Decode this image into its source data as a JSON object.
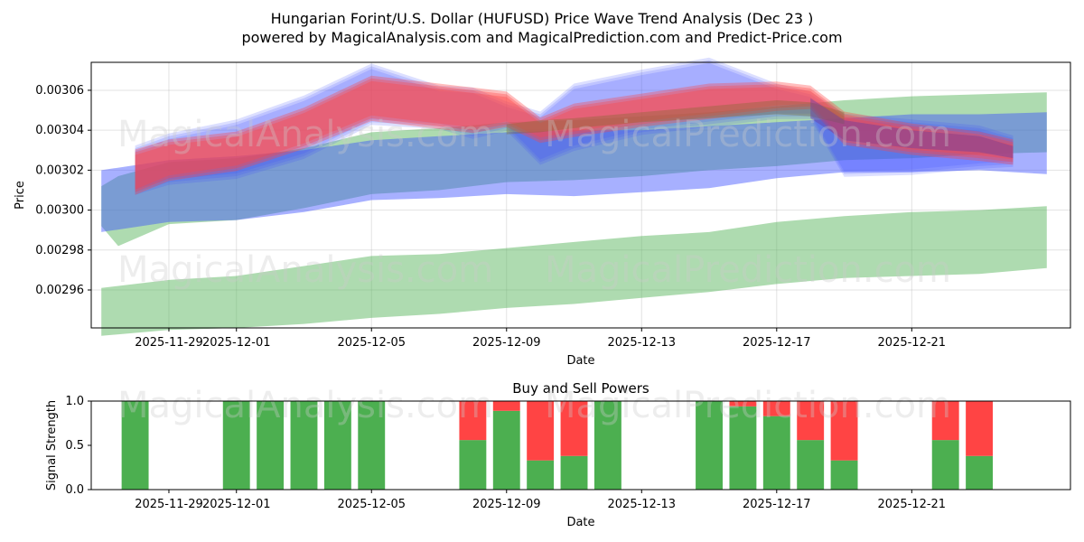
{
  "title_line1": "Hungarian Forint/U.S. Dollar (HUFUSD) Price Wave Trend Analysis (Dec 23 )",
  "title_line2": "powered by MagicalAnalysis.com and MagicalPrediction.com and Predict-Price.com",
  "watermarks": [
    "MagicalAnalysis.com",
    "MagicalPrediction.com"
  ],
  "colors": {
    "green": "#4caf50",
    "red": "#ff4444",
    "blue": "#3b4fff",
    "pink": "#ff6b7a",
    "purple": "#6a3fa0"
  },
  "chart_data": [
    {
      "type": "area",
      "title": "",
      "xlabel": "Date",
      "ylabel": "Price",
      "x_start": "2025-11-26",
      "x_range_days": [
        -0.3,
        28.7
      ],
      "ylim": [
        0.002941,
        0.003074
      ],
      "yticks": [
        0.00296,
        0.00298,
        0.003,
        0.00302,
        0.00304,
        0.00306
      ],
      "ytick_labels": [
        "0.00296",
        "0.00298",
        "0.00300",
        "0.00302",
        "0.00304",
        "0.00306"
      ],
      "xticks": [
        {
          "day": 2,
          "label": "2025-11-29"
        },
        {
          "day": 4,
          "label": "2025-12-01"
        },
        {
          "day": 8,
          "label": "2025-12-05"
        },
        {
          "day": 12,
          "label": "2025-12-09"
        },
        {
          "day": 16,
          "label": "2025-12-13"
        },
        {
          "day": 20,
          "label": "2025-12-17"
        },
        {
          "day": 24,
          "label": "2025-12-21"
        }
      ],
      "series": [
        {
          "name": "green-upper-band",
          "color": "green",
          "x": [
            0,
            0.5,
            2,
            4,
            6,
            8,
            10,
            12,
            14,
            16,
            18,
            20,
            22,
            24,
            26,
            28
          ],
          "upper": [
            0.003012,
            0.003017,
            0.003024,
            0.003026,
            0.003031,
            0.003039,
            0.003041,
            0.003044,
            0.003045,
            0.003047,
            0.003049,
            0.003052,
            0.003055,
            0.003057,
            0.003058,
            0.003059
          ],
          "lower": [
            0.002992,
            0.002982,
            0.002993,
            0.002995,
            0.003001,
            0.003008,
            0.00301,
            0.003014,
            0.003015,
            0.003017,
            0.00302,
            0.003022,
            0.003025,
            0.003026,
            0.003028,
            0.003029
          ]
        },
        {
          "name": "green-lower-band",
          "color": "green",
          "x": [
            0,
            2,
            4,
            6,
            8,
            10,
            12,
            14,
            16,
            18,
            20,
            22,
            24,
            26,
            28
          ],
          "upper": [
            0.002961,
            0.002965,
            0.002967,
            0.002972,
            0.002977,
            0.002978,
            0.002981,
            0.002984,
            0.002987,
            0.002989,
            0.002994,
            0.002997,
            0.002999,
            0.003,
            0.003002
          ],
          "lower": [
            0.002937,
            0.00294,
            0.002941,
            0.002943,
            0.002946,
            0.002948,
            0.002951,
            0.002953,
            0.002956,
            0.002959,
            0.002963,
            0.002966,
            0.002967,
            0.002968,
            0.002971
          ]
        },
        {
          "name": "blue-band",
          "color": "blue",
          "x": [
            0,
            2,
            4,
            6,
            8,
            10,
            12,
            14,
            16,
            18,
            20,
            22,
            24,
            26,
            28
          ],
          "upper": [
            0.00302,
            0.003025,
            0.003027,
            0.00303,
            0.003035,
            0.003037,
            0.003039,
            0.00304,
            0.00304,
            0.003042,
            0.003044,
            0.003046,
            0.003048,
            0.003048,
            0.003049
          ],
          "lower": [
            0.002989,
            0.002994,
            0.002995,
            0.002999,
            0.003005,
            0.003006,
            0.003008,
            0.003007,
            0.003009,
            0.003011,
            0.003016,
            0.003019,
            0.003019,
            0.00302,
            0.003018
          ]
        },
        {
          "name": "blue-wave",
          "color": "blue",
          "x": [
            1,
            2,
            4,
            6,
            8,
            10,
            11,
            12,
            13,
            14,
            16,
            18,
            20,
            21,
            22,
            24,
            26,
            27
          ],
          "upper": [
            0.003031,
            0.003037,
            0.003044,
            0.003056,
            0.003072,
            0.003061,
            0.00306,
            0.003053,
            0.003048,
            0.003062,
            0.003069,
            0.003075,
            0.003062,
            0.003058,
            0.003047,
            0.003044,
            0.003041,
            0.003036
          ],
          "lower": [
            0.003009,
            0.003014,
            0.003017,
            0.003027,
            0.003044,
            0.003042,
            0.003037,
            0.003041,
            0.003024,
            0.003031,
            0.003039,
            0.003043,
            0.003047,
            0.003047,
            0.003018,
            0.003019,
            0.003022,
            0.003023
          ]
        },
        {
          "name": "red-wave",
          "color": "red",
          "x": [
            1,
            2,
            4,
            6,
            8,
            10,
            11,
            12,
            13,
            14,
            16,
            18,
            20,
            21,
            22,
            24,
            26,
            27
          ],
          "upper": [
            0.003029,
            0.003034,
            0.003038,
            0.00305,
            0.003066,
            0.003062,
            0.00306,
            0.003058,
            0.003045,
            0.003052,
            0.003057,
            0.003062,
            0.003063,
            0.003061,
            0.003048,
            0.003042,
            0.003038,
            0.003034
          ],
          "lower": [
            0.003009,
            0.003016,
            0.003021,
            0.003032,
            0.003046,
            0.003042,
            0.00304,
            0.003043,
            0.003035,
            0.003038,
            0.003043,
            0.003047,
            0.003051,
            0.003052,
            0.003034,
            0.003029,
            0.003026,
            0.003024
          ]
        },
        {
          "name": "olive-wave",
          "color": "green",
          "x": [
            12,
            13,
            14,
            16,
            18,
            20,
            21,
            22
          ],
          "upper": [
            0.003043,
            0.003045,
            0.003046,
            0.003049,
            0.003052,
            0.003055,
            0.003054,
            0.003049
          ],
          "lower": [
            0.003038,
            0.003039,
            0.003041,
            0.003044,
            0.003046,
            0.003048,
            0.003047,
            0.003043
          ]
        },
        {
          "name": "purple-wave",
          "color": "purple",
          "x": [
            21,
            22,
            24,
            26,
            27
          ],
          "upper": [
            0.003056,
            0.003045,
            0.00304,
            0.003037,
            0.003032
          ],
          "lower": [
            0.003046,
            0.003035,
            0.003031,
            0.003029,
            0.003026
          ]
        }
      ]
    },
    {
      "type": "bar",
      "title": "Buy and Sell Powers",
      "xlabel": "Date",
      "ylabel": "Signal Strength",
      "ylim": [
        0,
        1
      ],
      "yticks": [
        0.0,
        0.5,
        1.0
      ],
      "ytick_labels": [
        "0.0",
        "0.5",
        "1.0"
      ],
      "xticks": [
        {
          "day": 2,
          "label": "2025-11-29"
        },
        {
          "day": 4,
          "label": "2025-12-01"
        },
        {
          "day": 8,
          "label": "2025-12-05"
        },
        {
          "day": 12,
          "label": "2025-12-09"
        },
        {
          "day": 16,
          "label": "2025-12-13"
        },
        {
          "day": 20,
          "label": "2025-12-17"
        },
        {
          "day": 24,
          "label": "2025-12-21"
        }
      ],
      "series": [
        {
          "name": "Buy",
          "color": "green"
        },
        {
          "name": "Sell",
          "color": "red"
        }
      ],
      "bars": [
        {
          "day": 1,
          "buy": 1.0,
          "sell": 0.0
        },
        {
          "day": 4,
          "buy": 1.0,
          "sell": 0.0
        },
        {
          "day": 5,
          "buy": 1.0,
          "sell": 0.0
        },
        {
          "day": 6,
          "buy": 1.0,
          "sell": 0.0
        },
        {
          "day": 7,
          "buy": 1.0,
          "sell": 0.0
        },
        {
          "day": 8,
          "buy": 1.0,
          "sell": 0.0
        },
        {
          "day": 11,
          "buy": 0.56,
          "sell": 0.44
        },
        {
          "day": 12,
          "buy": 0.89,
          "sell": 0.11
        },
        {
          "day": 13,
          "buy": 0.33,
          "sell": 0.67
        },
        {
          "day": 14,
          "buy": 0.38,
          "sell": 0.62
        },
        {
          "day": 15,
          "buy": 1.0,
          "sell": 0.0
        },
        {
          "day": 18,
          "buy": 1.0,
          "sell": 0.0
        },
        {
          "day": 19,
          "buy": 0.94,
          "sell": 0.06
        },
        {
          "day": 20,
          "buy": 0.83,
          "sell": 0.17
        },
        {
          "day": 21,
          "buy": 0.56,
          "sell": 0.44
        },
        {
          "day": 22,
          "buy": 0.33,
          "sell": 0.67
        },
        {
          "day": 25,
          "buy": 0.56,
          "sell": 0.44
        },
        {
          "day": 26,
          "buy": 0.38,
          "sell": 0.62
        }
      ]
    }
  ]
}
